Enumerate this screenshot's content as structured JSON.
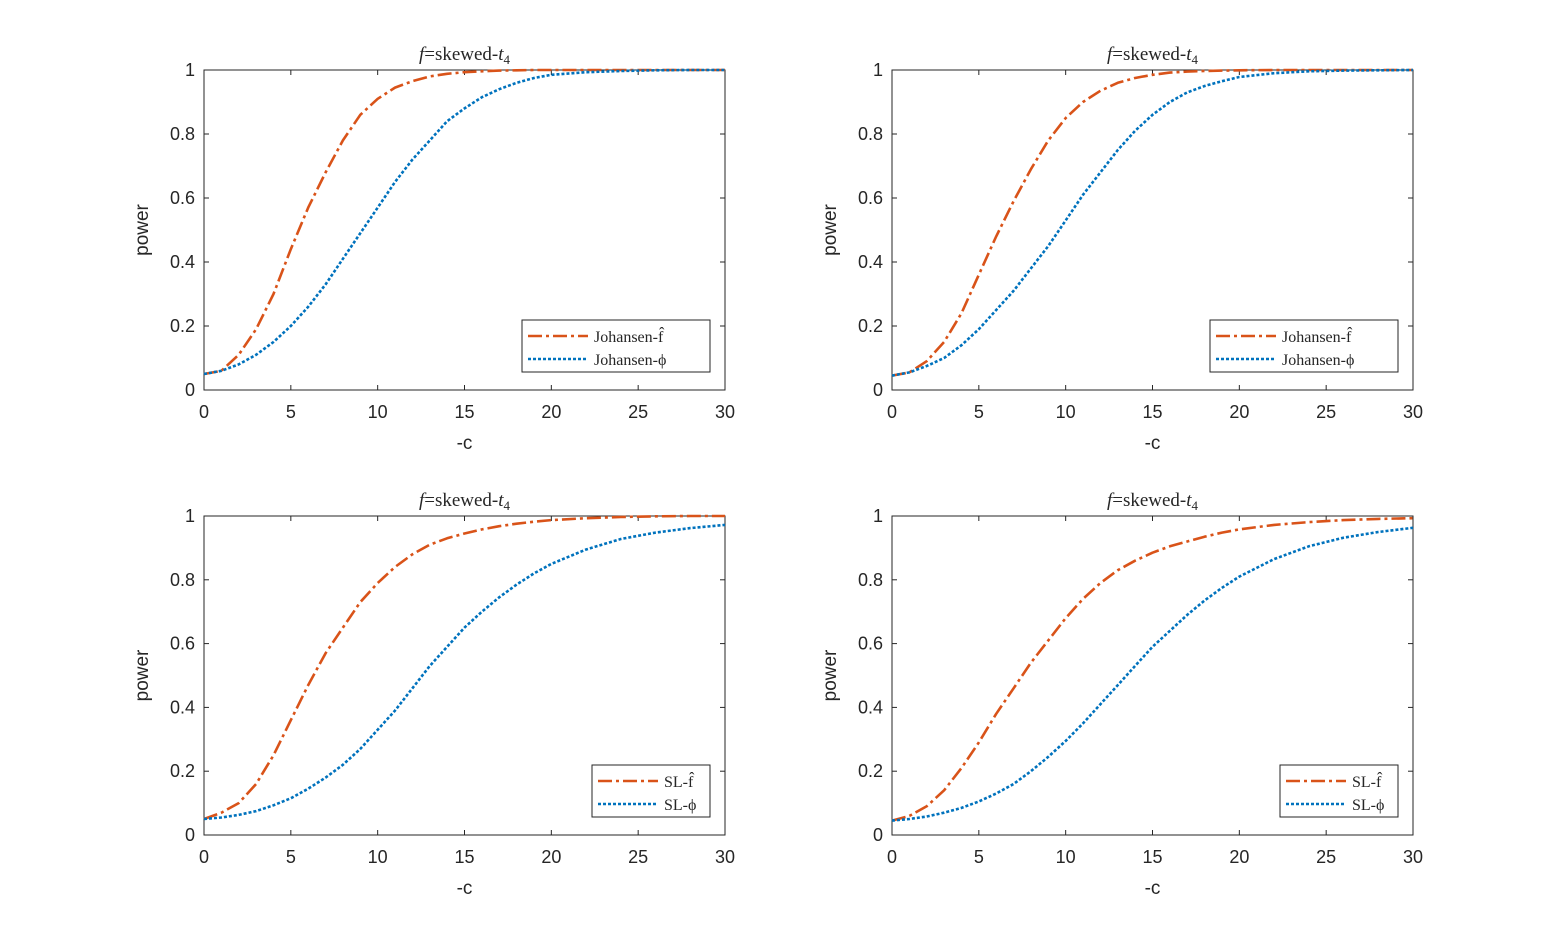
{
  "figure": {
    "background": "#ffffff",
    "colors": {
      "series_f_hat": "#D95319",
      "series_phi": "#0072BD",
      "axis": "#262626"
    }
  },
  "chart_data": [
    {
      "type": "line",
      "title": {
        "pre": "f",
        "mid": "=skewed-",
        "t": "t",
        "sub": "4"
      },
      "xlabel": "-c",
      "ylabel": "power",
      "xlim": [
        0,
        30
      ],
      "ylim": [
        0,
        1
      ],
      "xticks": [
        "0",
        "5",
        "10",
        "15",
        "20",
        "25",
        "30"
      ],
      "yticks": [
        "0",
        "0.2",
        "0.4",
        "0.6",
        "0.8",
        "1"
      ],
      "legend_position": "bottom-right",
      "x": [
        0,
        1,
        2,
        3,
        4,
        5,
        6,
        7,
        8,
        9,
        10,
        11,
        12,
        13,
        14,
        15,
        16,
        17,
        18,
        19,
        20,
        22,
        24,
        26,
        28,
        30
      ],
      "series": [
        {
          "name": "Johansen-f̂",
          "color": "#D95319",
          "style": "dashdot",
          "values": [
            0.05,
            0.06,
            0.11,
            0.19,
            0.3,
            0.44,
            0.57,
            0.68,
            0.78,
            0.86,
            0.91,
            0.945,
            0.965,
            0.98,
            0.988,
            0.993,
            0.996,
            0.998,
            0.999,
            1.0,
            1.0,
            1.0,
            1.0,
            1.0,
            1.0,
            1.0
          ]
        },
        {
          "name": "Johansen-ϕ",
          "color": "#0072BD",
          "style": "dotted",
          "values": [
            0.05,
            0.06,
            0.08,
            0.11,
            0.15,
            0.2,
            0.26,
            0.33,
            0.41,
            0.49,
            0.57,
            0.65,
            0.72,
            0.78,
            0.84,
            0.88,
            0.915,
            0.94,
            0.96,
            0.975,
            0.985,
            0.993,
            0.997,
            0.999,
            1.0,
            1.0
          ]
        }
      ]
    },
    {
      "type": "line",
      "title": {
        "pre": "f",
        "mid": "=skewed-",
        "t": "t",
        "sub": "4"
      },
      "xlabel": "-c",
      "ylabel": "power",
      "xlim": [
        0,
        30
      ],
      "ylim": [
        0,
        1
      ],
      "xticks": [
        "0",
        "5",
        "10",
        "15",
        "20",
        "25",
        "30"
      ],
      "yticks": [
        "0",
        "0.2",
        "0.4",
        "0.6",
        "0.8",
        "1"
      ],
      "legend_position": "bottom-right",
      "x": [
        0,
        1,
        2,
        3,
        4,
        5,
        6,
        7,
        8,
        9,
        10,
        11,
        12,
        13,
        14,
        15,
        16,
        17,
        18,
        19,
        20,
        22,
        24,
        26,
        28,
        30
      ],
      "series": [
        {
          "name": "Johansen-f̂",
          "color": "#D95319",
          "style": "dashdot",
          "values": [
            0.045,
            0.055,
            0.09,
            0.15,
            0.24,
            0.36,
            0.48,
            0.59,
            0.69,
            0.78,
            0.85,
            0.9,
            0.935,
            0.96,
            0.975,
            0.985,
            0.992,
            0.995,
            0.997,
            0.998,
            0.999,
            1.0,
            1.0,
            1.0,
            1.0,
            1.0
          ]
        },
        {
          "name": "Johansen-ϕ",
          "color": "#0072BD",
          "style": "dotted",
          "values": [
            0.045,
            0.055,
            0.075,
            0.1,
            0.14,
            0.19,
            0.25,
            0.31,
            0.38,
            0.45,
            0.53,
            0.61,
            0.68,
            0.75,
            0.81,
            0.86,
            0.9,
            0.93,
            0.95,
            0.965,
            0.978,
            0.99,
            0.996,
            0.998,
            0.999,
            1.0
          ]
        }
      ]
    },
    {
      "type": "line",
      "title": {
        "pre": "f",
        "mid": "=skewed-",
        "t": "t",
        "sub": "4"
      },
      "xlabel": "-c",
      "ylabel": "power",
      "xlim": [
        0,
        30
      ],
      "ylim": [
        0,
        1
      ],
      "xticks": [
        "0",
        "5",
        "10",
        "15",
        "20",
        "25",
        "30"
      ],
      "yticks": [
        "0",
        "0.2",
        "0.4",
        "0.6",
        "0.8",
        "1"
      ],
      "legend_position": "bottom-right",
      "x": [
        0,
        1,
        2,
        3,
        4,
        5,
        6,
        7,
        8,
        9,
        10,
        11,
        12,
        13,
        14,
        15,
        16,
        17,
        18,
        19,
        20,
        22,
        24,
        26,
        28,
        30
      ],
      "series": [
        {
          "name": "SL-f̂",
          "color": "#D95319",
          "style": "dashdot",
          "values": [
            0.05,
            0.07,
            0.1,
            0.16,
            0.25,
            0.36,
            0.47,
            0.57,
            0.65,
            0.73,
            0.79,
            0.84,
            0.88,
            0.91,
            0.93,
            0.945,
            0.958,
            0.968,
            0.976,
            0.982,
            0.987,
            0.993,
            0.997,
            0.999,
            1.0,
            1.0
          ]
        },
        {
          "name": "SL-ϕ",
          "color": "#0072BD",
          "style": "dotted",
          "values": [
            0.05,
            0.055,
            0.063,
            0.075,
            0.093,
            0.115,
            0.145,
            0.18,
            0.22,
            0.27,
            0.33,
            0.39,
            0.46,
            0.53,
            0.59,
            0.65,
            0.7,
            0.745,
            0.785,
            0.82,
            0.85,
            0.895,
            0.928,
            0.948,
            0.962,
            0.972
          ]
        }
      ]
    },
    {
      "type": "line",
      "title": {
        "pre": "f",
        "mid": "=skewed-",
        "t": "t",
        "sub": "4"
      },
      "xlabel": "-c",
      "ylabel": "power",
      "xlim": [
        0,
        30
      ],
      "ylim": [
        0,
        1
      ],
      "xticks": [
        "0",
        "5",
        "10",
        "15",
        "20",
        "25",
        "30"
      ],
      "yticks": [
        "0",
        "0.2",
        "0.4",
        "0.6",
        "0.8",
        "1"
      ],
      "legend_position": "bottom-right",
      "x": [
        0,
        1,
        2,
        3,
        4,
        5,
        6,
        7,
        8,
        9,
        10,
        11,
        12,
        13,
        14,
        15,
        16,
        17,
        18,
        19,
        20,
        22,
        24,
        26,
        28,
        30
      ],
      "series": [
        {
          "name": "SL-f̂",
          "color": "#D95319",
          "style": "dashdot",
          "values": [
            0.045,
            0.06,
            0.09,
            0.14,
            0.21,
            0.29,
            0.38,
            0.46,
            0.54,
            0.61,
            0.68,
            0.74,
            0.79,
            0.83,
            0.86,
            0.885,
            0.905,
            0.92,
            0.935,
            0.948,
            0.958,
            0.972,
            0.981,
            0.987,
            0.991,
            0.993
          ]
        },
        {
          "name": "SL-ϕ",
          "color": "#0072BD",
          "style": "dotted",
          "values": [
            0.045,
            0.05,
            0.058,
            0.07,
            0.085,
            0.105,
            0.13,
            0.16,
            0.2,
            0.245,
            0.295,
            0.35,
            0.41,
            0.47,
            0.53,
            0.59,
            0.64,
            0.69,
            0.735,
            0.775,
            0.81,
            0.865,
            0.905,
            0.932,
            0.95,
            0.963
          ]
        }
      ]
    }
  ]
}
